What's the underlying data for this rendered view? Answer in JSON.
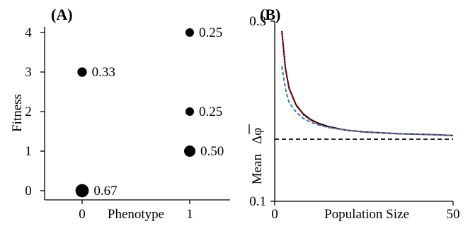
{
  "colors": {
    "black": "#000000",
    "red": "#d7191c",
    "blue": "#2c7fb8",
    "baseline": "#000000"
  },
  "chart_data": [
    {
      "panel": "(A)",
      "type": "scatter",
      "xlabel": "Phenotype",
      "ylabel": "Fitness",
      "xticks": [
        "0",
        "1"
      ],
      "yticks": [
        "0",
        "1",
        "2",
        "3",
        "4"
      ],
      "xlim": [
        0,
        1
      ],
      "ylim": [
        0,
        4
      ],
      "grid": false,
      "points": [
        {
          "x": 0,
          "y": 0,
          "label": "0.67",
          "weight": 0.67
        },
        {
          "x": 0,
          "y": 3,
          "label": "0.33",
          "weight": 0.33
        },
        {
          "x": 1,
          "y": 1,
          "label": "0.50",
          "weight": 0.5
        },
        {
          "x": 1,
          "y": 2,
          "label": "0.25",
          "weight": 0.25
        },
        {
          "x": 1,
          "y": 4,
          "label": "0.25",
          "weight": 0.25
        }
      ]
    },
    {
      "panel": "(B)",
      "type": "line",
      "xlabel": "Population Size",
      "ylabel_prefix": "Mean",
      "ylabel_symbol": "Δφ",
      "xticks": [
        "0",
        "50"
      ],
      "yticks": [
        "0.1",
        "0.3"
      ],
      "xlim": [
        0,
        50
      ],
      "ylim": [
        0.1,
        0.3
      ],
      "grid": false,
      "x": [
        2,
        3,
        4,
        6,
        8,
        10,
        12,
        15,
        20,
        25,
        30,
        35,
        40,
        45,
        50
      ],
      "series": [
        {
          "style": "solid",
          "color_key": "black",
          "values": [
            0.289,
            0.248,
            0.226,
            0.207,
            0.197,
            0.191,
            0.187,
            0.183,
            0.179,
            0.177,
            0.176,
            0.175,
            0.1745,
            0.174,
            0.173
          ]
        },
        {
          "style": "dotted",
          "color_key": "red",
          "values": [
            0.288,
            0.247,
            0.225,
            0.206,
            0.196,
            0.19,
            0.186,
            0.182,
            0.179,
            0.177,
            0.176,
            0.175,
            0.1745,
            0.174,
            0.173
          ]
        },
        {
          "style": "dashed",
          "color_key": "blue",
          "values": [
            0.25,
            0.225,
            0.21,
            0.199,
            0.192,
            0.188,
            0.185,
            0.182,
            0.179,
            0.177,
            0.176,
            0.175,
            0.1745,
            0.174,
            0.173
          ]
        }
      ],
      "reference_line": {
        "y": 0.169,
        "style": "dashed",
        "color_key": "baseline"
      }
    }
  ]
}
